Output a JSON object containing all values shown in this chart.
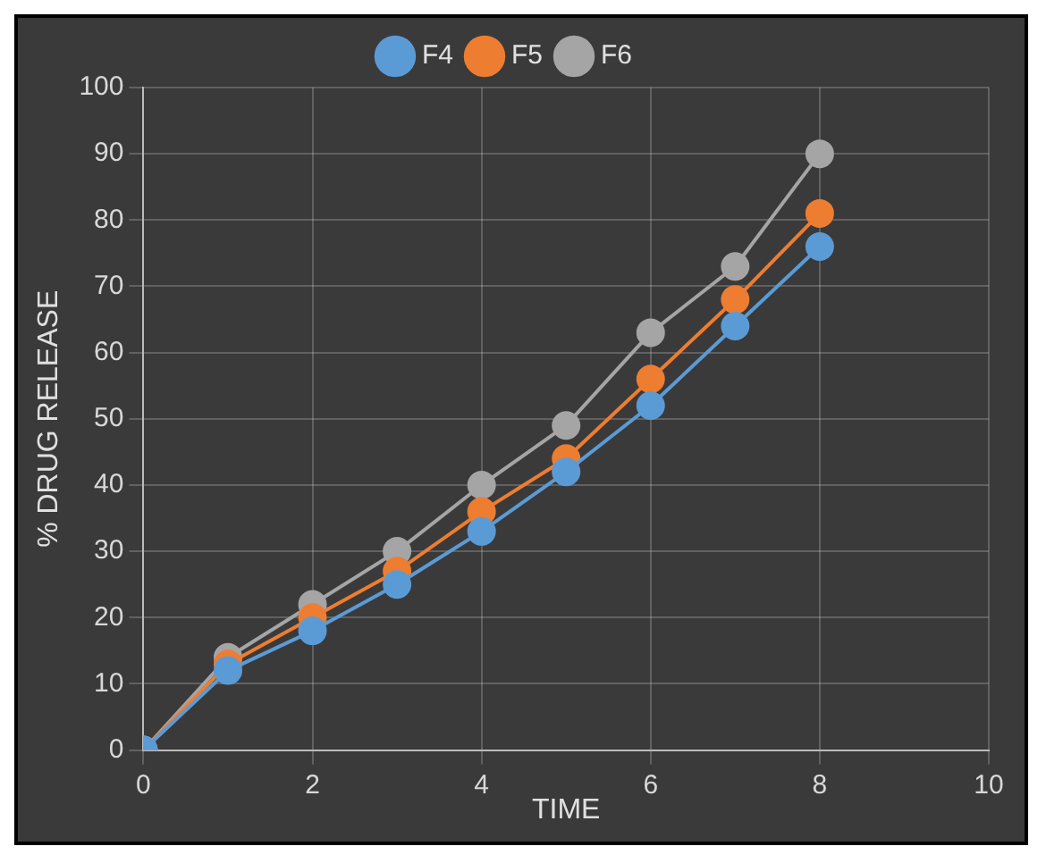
{
  "chart_data": {
    "type": "line",
    "xlabel": "TIME",
    "ylabel": "% DRUG RELEASE",
    "x": [
      0,
      1,
      2,
      3,
      4,
      5,
      6,
      7,
      8
    ],
    "series": [
      {
        "name": "F4",
        "color": "#5b9bd5",
        "values": [
          0,
          12,
          18,
          25,
          33,
          42,
          52,
          64,
          76
        ]
      },
      {
        "name": "F5",
        "color": "#ed7d31",
        "values": [
          0,
          13,
          20,
          27,
          36,
          44,
          56,
          68,
          81
        ]
      },
      {
        "name": "F6",
        "color": "#a5a5a5",
        "values": [
          0,
          14,
          22,
          30,
          40,
          49,
          63,
          73,
          90
        ]
      }
    ],
    "xlim": [
      0,
      10
    ],
    "xticks": [
      0,
      2,
      4,
      6,
      8,
      10
    ],
    "ylim": [
      0,
      100
    ],
    "yticks": [
      0,
      10,
      20,
      30,
      40,
      50,
      60,
      70,
      80,
      90,
      100
    ],
    "grid": true,
    "legend": "top",
    "marker": "circle",
    "line_style": "solid"
  }
}
